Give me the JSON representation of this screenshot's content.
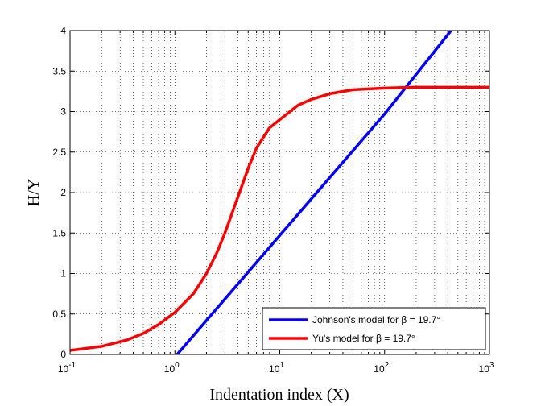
{
  "chart_data": {
    "type": "line",
    "title": "",
    "xlabel": "Indentation index (X)",
    "ylabel": "H/Y",
    "xscale": "log",
    "xlim": [
      0.1,
      1000
    ],
    "ylim": [
      0,
      4
    ],
    "grid": "dotted, major and minor",
    "legend_position": "bottom-right",
    "x_ticks": [
      {
        "value": 0.1,
        "base": "10",
        "exp": "-1"
      },
      {
        "value": 1,
        "base": "10",
        "exp": "0"
      },
      {
        "value": 10,
        "base": "10",
        "exp": "1"
      },
      {
        "value": 100,
        "base": "10",
        "exp": "2"
      },
      {
        "value": 1000,
        "base": "10",
        "exp": "3"
      }
    ],
    "y_ticks": [
      {
        "value": 0,
        "label": "0"
      },
      {
        "value": 0.5,
        "label": "0.5"
      },
      {
        "value": 1,
        "label": "1"
      },
      {
        "value": 1.5,
        "label": "1.5"
      },
      {
        "value": 2,
        "label": "2"
      },
      {
        "value": 2.5,
        "label": "2.5"
      },
      {
        "value": 3,
        "label": "3"
      },
      {
        "value": 3.5,
        "label": "3.5"
      },
      {
        "value": 4,
        "label": "4"
      }
    ],
    "series": [
      {
        "name": "Johnson's model for β = 19.7°",
        "color": "#0000ff",
        "x": [
          1.05,
          10,
          100,
          430
        ],
        "y": [
          0,
          1.47,
          2.97,
          4.0
        ]
      },
      {
        "name": "Yu's model for β = 19.7°",
        "color": "#ff0000",
        "x": [
          0.1,
          0.2,
          0.35,
          0.5,
          0.7,
          1.0,
          1.5,
          2.0,
          2.5,
          3.0,
          4.0,
          5.0,
          6.0,
          8.0,
          10,
          15,
          20,
          30,
          50,
          100,
          200,
          1000
        ],
        "y": [
          0.05,
          0.1,
          0.18,
          0.26,
          0.37,
          0.52,
          0.75,
          1.0,
          1.25,
          1.5,
          1.95,
          2.3,
          2.55,
          2.8,
          2.9,
          3.08,
          3.15,
          3.22,
          3.27,
          3.29,
          3.3,
          3.3
        ]
      }
    ]
  }
}
